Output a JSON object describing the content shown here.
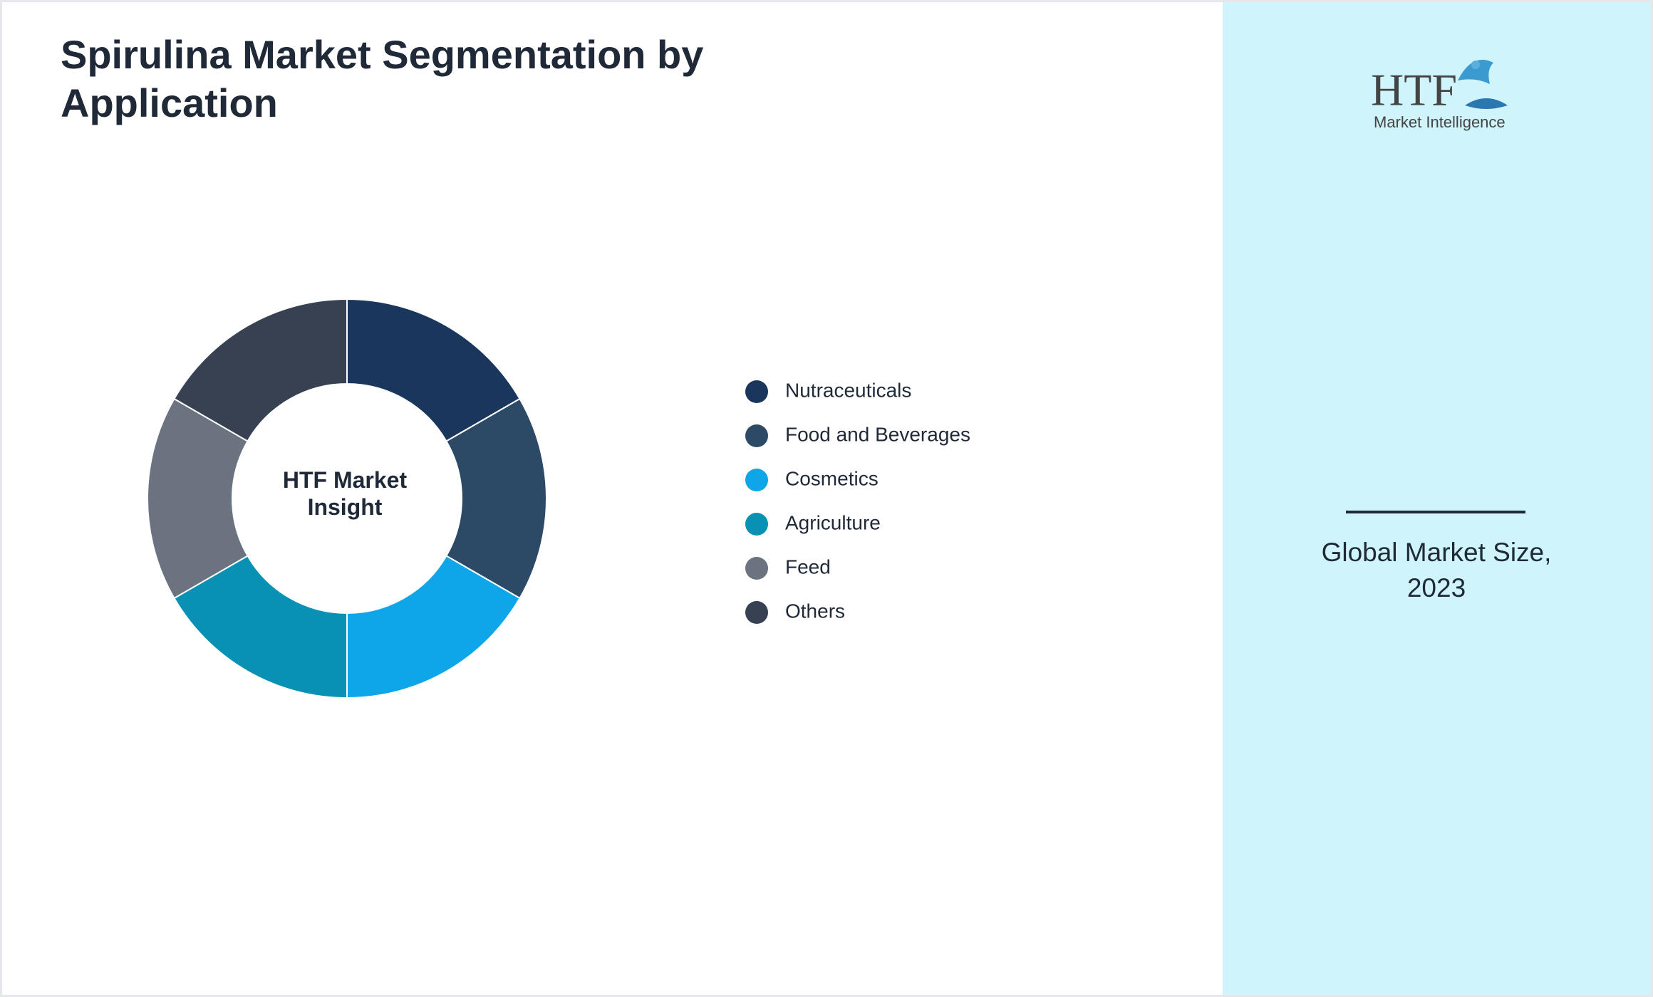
{
  "chart_data": {
    "type": "donut",
    "title": "Spirulina Market Segmentation by Application",
    "center_label": "HTF Market Insight",
    "categories": [
      "Nutraceuticals",
      "Food and Beverages",
      "Cosmetics",
      "Agriculture",
      "Feed",
      "Others"
    ],
    "values": [
      16.7,
      16.7,
      16.7,
      16.7,
      16.7,
      16.7
    ],
    "colors": [
      "#1b365d",
      "#2c4a66",
      "#0ea5e9",
      "#0891b2",
      "#6b7280",
      "#374151"
    ]
  },
  "sidebar": {
    "logo_mark": "HTF",
    "logo_text": "Market Intelligence",
    "caption": "Global Market Size, 2023"
  }
}
